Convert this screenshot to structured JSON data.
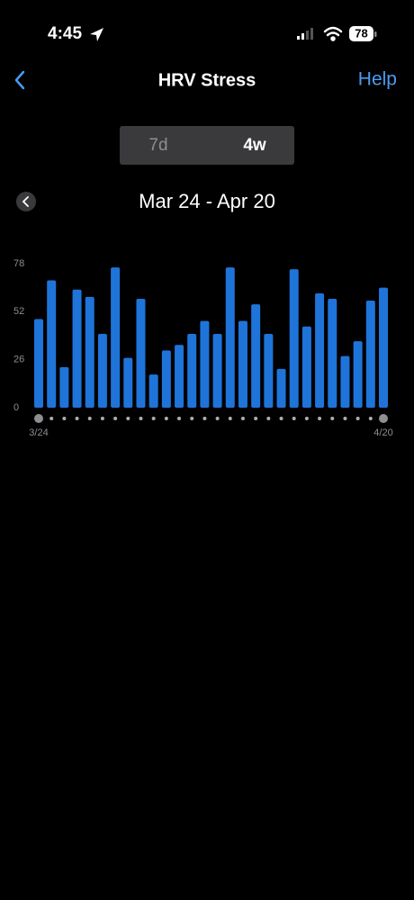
{
  "status_bar": {
    "time": "4:45",
    "battery": 78
  },
  "header": {
    "title": "HRV Stress",
    "help": "Help"
  },
  "segments": [
    "7d",
    "4w"
  ],
  "date_range": "Mar 24 - Apr 20",
  "chart_data": {
    "type": "bar",
    "categories": [
      "3/24",
      null,
      null,
      null,
      null,
      null,
      null,
      null,
      null,
      null,
      null,
      null,
      null,
      null,
      null,
      null,
      null,
      null,
      null,
      null,
      null,
      null,
      null,
      null,
      null,
      null,
      null,
      "4/20"
    ],
    "values": [
      48,
      69,
      22,
      64,
      60,
      40,
      76,
      27,
      59,
      18,
      31,
      34,
      40,
      47,
      40,
      76,
      47,
      56,
      40,
      21,
      75,
      44,
      62,
      59,
      28,
      36,
      58,
      65
    ],
    "color": "#1e74d9",
    "ylim": [
      0,
      78
    ],
    "yticks": [
      0,
      26,
      52,
      78
    ]
  }
}
